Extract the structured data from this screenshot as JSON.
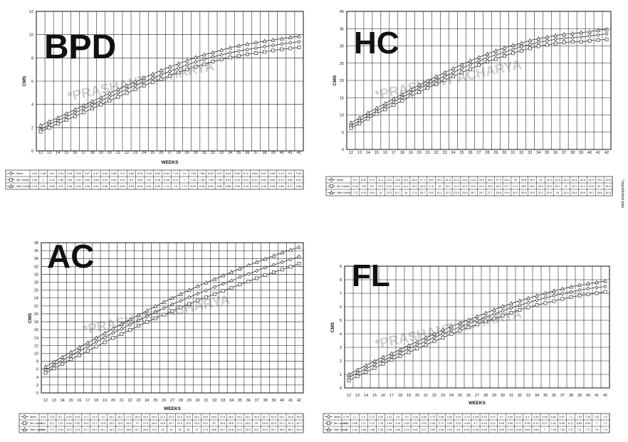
{
  "watermark": "*PRASHANT ACHARYA",
  "footnote": "*unpublished data",
  "colors": {
    "line": "#333333",
    "grid": "#1a1a1a",
    "watermark": "#cfcfcf"
  },
  "chart_data": [
    {
      "type": "line",
      "title": "BPD",
      "xlabel": "WEEKS",
      "ylabel": "CMS",
      "ylim": [
        0,
        12
      ],
      "yticks": [
        0,
        2,
        4,
        6,
        8,
        10,
        12
      ],
      "x": [
        12,
        13,
        14,
        15,
        16,
        17,
        18,
        19,
        20,
        21,
        22,
        23,
        24,
        25,
        26,
        27,
        28,
        29,
        30,
        31,
        32,
        33,
        34,
        35,
        36,
        37,
        38,
        39,
        40,
        41,
        42
      ],
      "series": [
        {
          "name": "Mean",
          "marker": "diamond",
          "values": [
            1.83,
            2.28,
            2.61,
            2.94,
            3.28,
            3.63,
            3.97,
            4.31,
            4.64,
            4.98,
            5.3,
            5.63,
            5.93,
            6.25,
            6.54,
            6.84,
            7.13,
            7.4,
            7.65,
            7.88,
            8.09,
            8.27,
            8.43,
            8.59,
            8.72,
            8.85,
            8.97,
            9.08,
            9.19,
            9.3,
            9.39
          ]
        },
        {
          "name": "5th Centile",
          "marker": "square",
          "values": [
            1.66,
            2,
            2.34,
            2.66,
            2.99,
            3.31,
            3.64,
            3.98,
            4.31,
            4.64,
            4.97,
            5.3,
            5.62,
            5.9,
            6.18,
            6.46,
            6.74,
            7,
            7.23,
            7.46,
            7.68,
            7.86,
            8.03,
            8.18,
            8.31,
            8.42,
            8.52,
            8.64,
            8.74,
            8.82,
            8.91
          ]
        },
        {
          "name": "95th Centile",
          "marker": "triangle",
          "values": [
            2.19,
            2.52,
            2.86,
            3.21,
            3.56,
            3.92,
            4.26,
            4.61,
            4.96,
            5.29,
            5.62,
            5.94,
            6.28,
            6.61,
            6.93,
            7.23,
            7.5,
            7.77,
            8.04,
            8.28,
            8.46,
            8.68,
            8.88,
            9.05,
            9.19,
            9.32,
            9.44,
            9.55,
            9.66,
            9.77,
            9.86
          ]
        }
      ]
    },
    {
      "type": "line",
      "title": "HC",
      "xlabel": "",
      "ylabel": "CMS",
      "ylim": [
        0,
        40
      ],
      "yticks": [
        0,
        5,
        10,
        15,
        20,
        25,
        30,
        35,
        40
      ],
      "x": [
        12,
        13,
        14,
        15,
        16,
        17,
        18,
        19,
        20,
        21,
        22,
        23,
        24,
        25,
        26,
        27,
        28,
        29,
        30,
        31,
        32,
        33,
        34,
        35,
        36,
        37,
        38,
        39,
        40,
        41,
        42
      ],
      "series": [
        {
          "name": "Mean",
          "marker": "diamond",
          "values": [
            6.9,
            8.33,
            9.72,
            11.1,
            12.5,
            13.8,
            15.1,
            16.4,
            17.7,
            18.9,
            20.1,
            21.3,
            22.3,
            23.5,
            24.6,
            25.6,
            26.6,
            27.4,
            28.2,
            29,
            29.8,
            30.4,
            31,
            31.5,
            31.9,
            32.2,
            32.4,
            32.6,
            32.9,
            33.2,
            33.5
          ]
        },
        {
          "name": "5th Centile",
          "marker": "square",
          "values": [
            6.18,
            7.52,
            8.9,
            10.3,
            11.6,
            12.9,
            14.1,
            15.4,
            16.6,
            17.8,
            19,
            20.1,
            21.2,
            22.3,
            23.3,
            24.4,
            25.5,
            26.2,
            27.1,
            27.9,
            28.6,
            29.3,
            29.9,
            30.3,
            30.7,
            31,
            31.2,
            31.2,
            31.5,
            31.7,
            31.9
          ]
        },
        {
          "name": "95th Centile",
          "marker": "triangle",
          "values": [
            7.72,
            9.15,
            10.6,
            12,
            13.3,
            14.7,
            16,
            17.4,
            18.7,
            19.9,
            21.1,
            22.3,
            23.5,
            24.6,
            25.7,
            26.7,
            27.7,
            28.6,
            29.4,
            30.2,
            30.8,
            31.6,
            32.1,
            32.6,
            33,
            33.4,
            33.6,
            33.9,
            34.1,
            34.6,
            34.8
          ]
        }
      ]
    },
    {
      "type": "line",
      "title": "AC",
      "xlabel": "WEEKS",
      "ylabel": "CMS",
      "ylim": [
        0,
        38
      ],
      "yticks": [
        0,
        2,
        4,
        6,
        8,
        10,
        12,
        14,
        16,
        18,
        20,
        22,
        24,
        26,
        28,
        30,
        32,
        34,
        36,
        38
      ],
      "x": [
        12,
        13,
        14,
        15,
        16,
        17,
        18,
        19,
        20,
        21,
        22,
        23,
        24,
        25,
        26,
        27,
        28,
        29,
        30,
        31,
        32,
        33,
        34,
        35,
        36,
        37,
        38,
        39,
        40,
        41,
        42
      ],
      "series": [
        {
          "name": "Mean",
          "marker": "diamond",
          "values": [
            5.81,
            7.02,
            8.2,
            9.39,
            10.6,
            11.7,
            12.9,
            14,
            15.2,
            16.2,
            17.3,
            18.4,
            19.4,
            20.4,
            21.4,
            22.4,
            23.3,
            24.2,
            25.1,
            25.9,
            26.8,
            27.6,
            28.4,
            29.3,
            30.1,
            30.9,
            31.7,
            32.4,
            33.1,
            33.8,
            34.5
          ]
        },
        {
          "name": "5th Centile",
          "marker": "square",
          "values": [
            5.11,
            6.2,
            7.31,
            8.48,
            9.52,
            10.6,
            11.7,
            12.8,
            13.9,
            14.9,
            15.9,
            17,
            17.9,
            18.9,
            19.8,
            20.7,
            21.6,
            22.5,
            23.4,
            24.2,
            25,
            25.8,
            26.6,
            27.4,
            28.2,
            29,
            29.8,
            30.5,
            31.2,
            31.9,
            32.7
          ]
        },
        {
          "name": "95th Centile",
          "marker": "triangle",
          "values": [
            6.61,
            7.9,
            9.09,
            10.3,
            11.5,
            12.7,
            13.9,
            15.1,
            16.3,
            17.4,
            18.6,
            19.7,
            20.8,
            21.9,
            23,
            24,
            25,
            26,
            27,
            27.9,
            28.8,
            29.7,
            30.6,
            31.4,
            32.3,
            33.1,
            33.9,
            34.7,
            35.5,
            36.2,
            36.9
          ]
        }
      ]
    },
    {
      "type": "line",
      "title": "FL",
      "xlabel": "WEEKS",
      "ylabel": "CMS",
      "ylim": [
        0,
        9
      ],
      "yticks": [
        0,
        1,
        2,
        3,
        4,
        5,
        6,
        7,
        8,
        9
      ],
      "x": [
        12,
        13,
        14,
        15,
        16,
        17,
        18,
        19,
        20,
        21,
        22,
        23,
        24,
        25,
        26,
        27,
        28,
        29,
        30,
        31,
        32,
        33,
        34,
        35,
        36,
        37,
        38,
        39,
        40,
        41,
        42
      ],
      "series": [
        {
          "name": "Mean",
          "marker": "diamond",
          "values": [
            0.78,
            1.1,
            1.4,
            1.72,
            2.02,
            2.31,
            2.6,
            2.9,
            3.18,
            3.45,
            3.73,
            3.99,
            4.25,
            4.51,
            4.75,
            4.99,
            5.23,
            5.47,
            5.7,
            5.92,
            6.12,
            6.3,
            6.49,
            6.66,
            6.82,
            6.97,
            7.1,
            7.23,
            7.34,
            7.42,
            7.5
          ]
        },
        {
          "name": "5th Centile",
          "marker": "square",
          "values": [
            0.55,
            0.86,
            1.17,
            1.47,
            1.78,
            2.08,
            2.34,
            2.63,
            2.91,
            3.18,
            3.45,
            3.71,
            3.99,
            4.22,
            4.48,
            4.7,
            4.92,
            5.12,
            5.35,
            5.55,
            5.77,
            5.95,
            6.12,
            6.27,
            6.42,
            6.58,
            6.71,
            6.83,
            6.92,
            7,
            7.1
          ]
        },
        {
          "name": "95th Centile",
          "marker": "triangle",
          "values": [
            1,
            1.34,
            1.66,
            1.98,
            2.28,
            2.54,
            2.84,
            3.14,
            3.43,
            3.71,
            3.99,
            4.28,
            4.54,
            4.8,
            5.04,
            5.28,
            5.54,
            5.78,
            6.03,
            6.24,
            6.45,
            6.63,
            6.82,
            7,
            7.18,
            7.33,
            7.47,
            7.6,
            7.71,
            7.8,
            7.9
          ]
        }
      ]
    }
  ]
}
